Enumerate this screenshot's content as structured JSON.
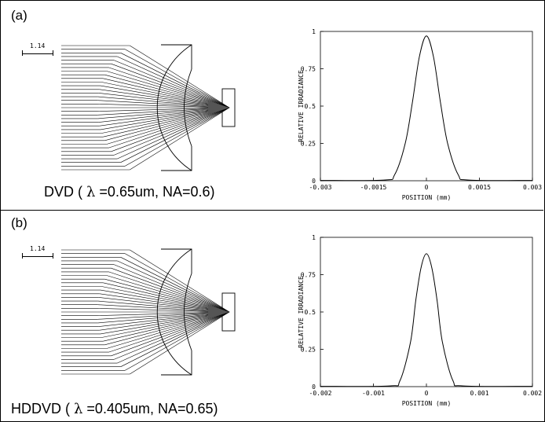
{
  "panels": [
    {
      "label": "(a)",
      "scale_label": "1.14",
      "caption_pre": "DVD ( ",
      "caption_lambda": "λ",
      "caption_post": " =0.65um, NA=0.6)",
      "chart_data": {
        "type": "line",
        "xlabel": "POSITION (mm)",
        "ylabel": "RELATIVE IRRADIANCE",
        "xlim": [
          -0.003,
          0.003
        ],
        "ylim": [
          0,
          1
        ],
        "xticks": [
          "-0.003",
          "-0.0015",
          "0",
          "0.0015",
          "0.003"
        ],
        "yticks": [
          "0",
          "0.25",
          "0.5",
          "0.75",
          "1"
        ],
        "series": [
          {
            "x": [
              -0.003,
              -0.0012,
              -0.0009,
              -0.0006,
              -0.0004,
              -0.0002,
              0,
              0.0002,
              0.0004,
              0.0006,
              0.0009,
              0.0012,
              0.003
            ],
            "y": [
              0.002,
              0.005,
              0.04,
              0.25,
              0.52,
              0.83,
              0.97,
              0.83,
              0.52,
              0.25,
              0.04,
              0.005,
              0.002
            ]
          }
        ]
      }
    },
    {
      "label": "(b)",
      "scale_label": "1.14",
      "caption_pre": "HDDVD ( ",
      "caption_lambda": "λ",
      "caption_post": " =0.405um, NA=0.65)",
      "chart_data": {
        "type": "line",
        "xlabel": "POSITION (mm)",
        "ylabel": "RELATIVE IRRADIANCE",
        "xlim": [
          -0.002,
          0.002
        ],
        "ylim": [
          0,
          1
        ],
        "xticks": [
          "-0.002",
          "-0.001",
          "0",
          "0.001",
          "0.002"
        ],
        "yticks": [
          "0",
          "0.25",
          "0.5",
          "0.75",
          "1"
        ],
        "series": [
          {
            "x": [
              -0.002,
              -0.0007,
              -0.0005,
              -0.0003,
              -0.0002,
              -0.0001,
              0,
              0.0001,
              0.0002,
              0.0003,
              0.0005,
              0.0007,
              0.002
            ],
            "y": [
              0.002,
              0.005,
              0.04,
              0.3,
              0.58,
              0.8,
              0.89,
              0.8,
              0.58,
              0.3,
              0.04,
              0.005,
              0.002
            ]
          }
        ]
      }
    }
  ]
}
